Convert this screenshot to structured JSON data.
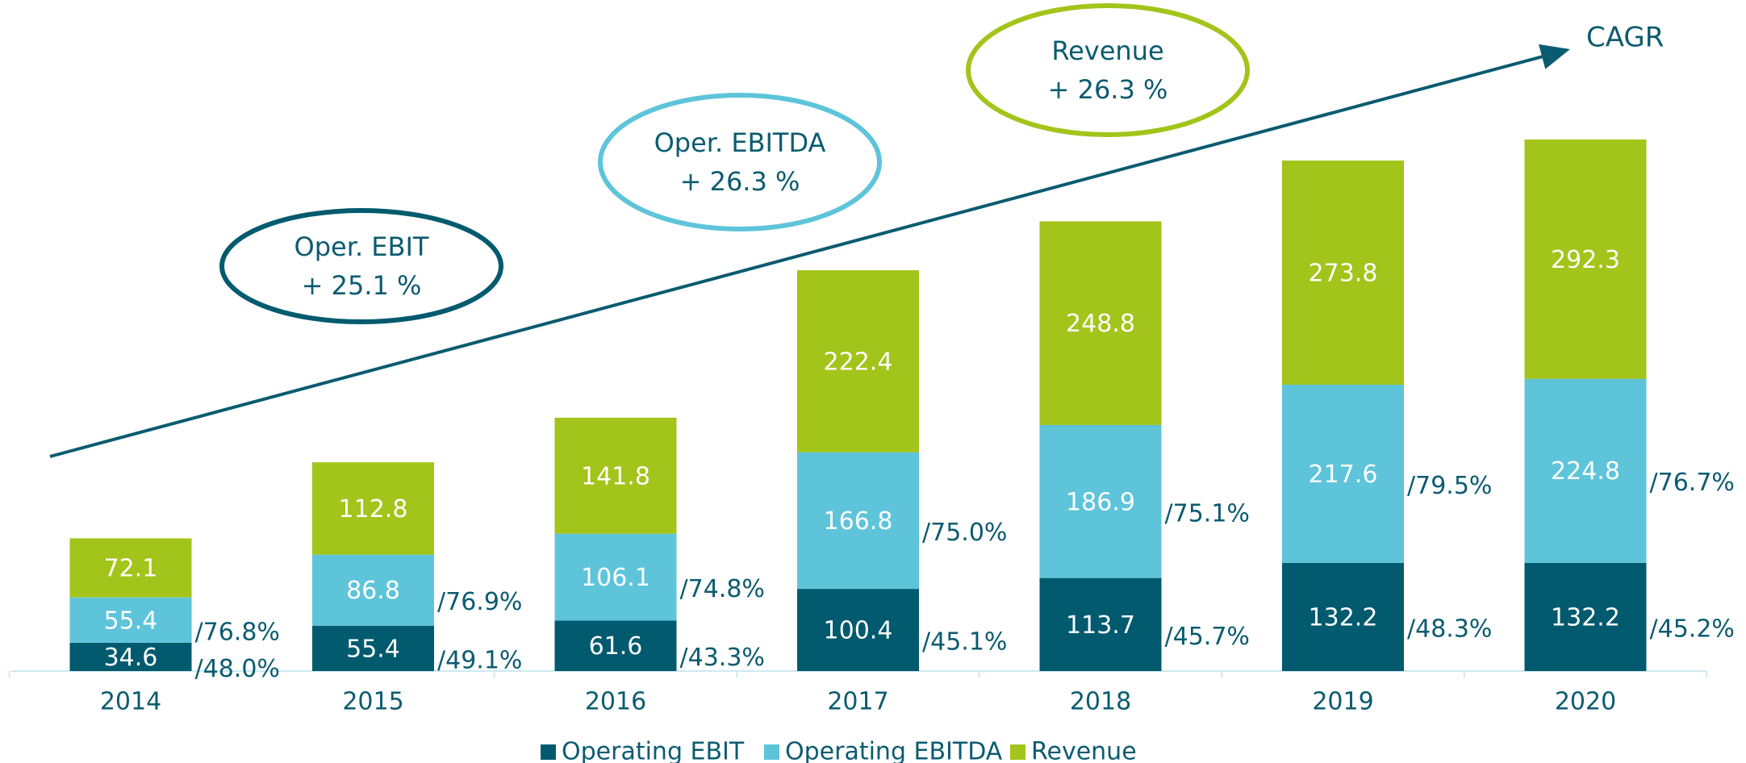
{
  "chart_data": {
    "type": "stacked_bar",
    "categories": [
      "2014",
      "2015",
      "2016",
      "2017",
      "2018",
      "2019",
      "2020"
    ],
    "series": [
      {
        "name": "Operating EBIT",
        "color": "#015a6e",
        "values": [
          34.6,
          55.4,
          61.6,
          100.4,
          113.7,
          132.2,
          132.2
        ],
        "margins": [
          "/48.0%",
          "/49.1%",
          "/43.3%",
          "/45.1%",
          "/45.7%",
          "/48.3%",
          "/45.2%"
        ]
      },
      {
        "name": "Operating EBITDA",
        "color": "#5ec4da",
        "values": [
          55.4,
          86.8,
          106.1,
          166.8,
          186.9,
          217.6,
          224.8
        ],
        "margins": [
          "/76.8%",
          "/76.9%",
          "/74.8%",
          "/75.0%",
          "/75.1%",
          "/79.5%",
          "/76.7%"
        ]
      },
      {
        "name": "Revenue",
        "color": "#a3c41a",
        "values": [
          72.1,
          112.8,
          141.8,
          222.4,
          248.8,
          273.8,
          292.3
        ]
      }
    ],
    "annotations": [
      {
        "label": "Oper. EBIT",
        "text": "+ 25.1 %",
        "color": "#015a6e"
      },
      {
        "label": "Oper. EBITDA",
        "text": "+ 26.3 %",
        "color": "#5ec4da"
      },
      {
        "label": "Revenue",
        "text": "+ 26.3 %",
        "color": "#a3c41a"
      }
    ],
    "arrow_label": "CAGR"
  }
}
